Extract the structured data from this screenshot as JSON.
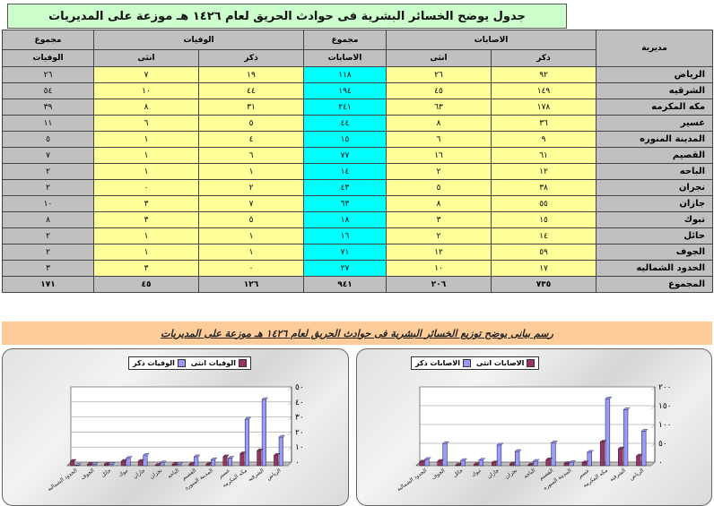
{
  "title": "جدول يوضح الخسائر البشرية فى حوادث الحريق لعام ١٤٢٦ هـ موزعة على المديريات",
  "subtitle": "رسم بيانى يوضح توزيع الخسائر البشرية فى حوادث الحريق لعام ١٤٢٦ هـ موزعة على المديريات",
  "headers": {
    "directorate": "مديرية",
    "injuries": "الاصابات",
    "injuries_total_top": "مجموع",
    "injuries_total_bottom": "الاصابات",
    "deaths": "الوفيات",
    "deaths_total_top": "مجموع",
    "deaths_total_bottom": "الوفيات",
    "male": "ذكر",
    "female": "انثى"
  },
  "rows": [
    {
      "name": "الرياض",
      "inj_m": "٩٢",
      "inj_f": "٢٦",
      "inj_t": "١١٨",
      "dth_m": "١٩",
      "dth_f": "٧",
      "dth_t": "٢٦"
    },
    {
      "name": "الشرقيه",
      "inj_m": "١٤٩",
      "inj_f": "٤٥",
      "inj_t": "١٩٤",
      "dth_m": "٤٤",
      "dth_f": "١٠",
      "dth_t": "٥٤"
    },
    {
      "name": "مكه المكرمه",
      "inj_m": "١٧٨",
      "inj_f": "٦٣",
      "inj_t": "٢٤١",
      "dth_m": "٣١",
      "dth_f": "٨",
      "dth_t": "٣٩"
    },
    {
      "name": "عسير",
      "inj_m": "٣٦",
      "inj_f": "٨",
      "inj_t": "٤٤",
      "dth_m": "٥",
      "dth_f": "٦",
      "dth_t": "١١"
    },
    {
      "name": "المدينة المنوره",
      "inj_m": "٩",
      "inj_f": "٦",
      "inj_t": "١٥",
      "dth_m": "٤",
      "dth_f": "١",
      "dth_t": "٥"
    },
    {
      "name": "القصيم",
      "inj_m": "٦١",
      "inj_f": "١٦",
      "inj_t": "٧٧",
      "dth_m": "٦",
      "dth_f": "١",
      "dth_t": "٧"
    },
    {
      "name": "الباحه",
      "inj_m": "١٢",
      "inj_f": "٢",
      "inj_t": "١٤",
      "dth_m": "١",
      "dth_f": "١",
      "dth_t": "٢"
    },
    {
      "name": "نجران",
      "inj_m": "٣٨",
      "inj_f": "٥",
      "inj_t": "٤٣",
      "dth_m": "٢",
      "dth_f": "٠",
      "dth_t": "٢"
    },
    {
      "name": "جازان",
      "inj_m": "٥٥",
      "inj_f": "٨",
      "inj_t": "٦٣",
      "dth_m": "٧",
      "dth_f": "٣",
      "dth_t": "١٠"
    },
    {
      "name": "تبوك",
      "inj_m": "١٥",
      "inj_f": "٣",
      "inj_t": "١٨",
      "dth_m": "٥",
      "dth_f": "٣",
      "dth_t": "٨"
    },
    {
      "name": "حائل",
      "inj_m": "١٤",
      "inj_f": "٢",
      "inj_t": "١٦",
      "dth_m": "١",
      "dth_f": "١",
      "dth_t": "٢"
    },
    {
      "name": "الجوف",
      "inj_m": "٥٩",
      "inj_f": "١٢",
      "inj_t": "٧١",
      "dth_m": "١",
      "dth_f": "١",
      "dth_t": "٢"
    },
    {
      "name": "الحدود الشماليه",
      "inj_m": "١٧",
      "inj_f": "١٠",
      "inj_t": "٢٧",
      "dth_m": "٠",
      "dth_f": "٣",
      "dth_t": "٣"
    }
  ],
  "totals": {
    "name": "المجموع",
    "inj_m": "٧٣٥",
    "inj_f": "٢٠٦",
    "inj_t": "٩٤١",
    "dth_m": "١٢٦",
    "dth_f": "٤٥",
    "dth_t": "١٧١"
  },
  "colors": {
    "male": "#9999ff",
    "female": "#993366",
    "title_bg": "#ccffcc",
    "cell_yellow": "#ffff99",
    "cell_cyan": "#00ffff",
    "subtitle_bg": "#ffcc99"
  },
  "chart_data": [
    {
      "type": "bar",
      "categories": [
        "الحدود الشماليه",
        "الجوف",
        "حائل",
        "تبوك",
        "جازان",
        "نجران",
        "الباحه",
        "القصيم",
        "المدينة المنوره",
        "عسير",
        "مكه المكرمه",
        "الشرقيه",
        "الرياض"
      ],
      "series": [
        {
          "name": "الوفيات ذكر",
          "color": "#9999ff",
          "values": [
            0,
            1,
            1,
            5,
            7,
            2,
            1,
            6,
            4,
            5,
            31,
            44,
            19
          ]
        },
        {
          "name": "الوفيات انثى",
          "color": "#993366",
          "values": [
            3,
            1,
            1,
            3,
            3,
            0,
            1,
            1,
            1,
            6,
            8,
            10,
            7
          ]
        }
      ],
      "ylim": [
        0,
        50
      ],
      "yticks": [
        "٠",
        "١٠",
        "٢٠",
        "٣٠",
        "٤٠",
        "٥٠"
      ],
      "legend": "top"
    },
    {
      "type": "bar",
      "categories": [
        "الحدود الشماليه",
        "الجوف",
        "حائل",
        "تبوك",
        "جازان",
        "نجران",
        "الباحه",
        "القصيم",
        "المدينة المنوره",
        "عسير",
        "مكه المكرمه",
        "الشرقيه",
        "الرياض"
      ],
      "series": [
        {
          "name": "الاصابات ذكر",
          "color": "#9999ff",
          "values": [
            17,
            59,
            14,
            15,
            55,
            38,
            12,
            61,
            9,
            36,
            178,
            149,
            92
          ]
        },
        {
          "name": "الاصابات انثى",
          "color": "#993366",
          "values": [
            10,
            12,
            2,
            3,
            8,
            5,
            2,
            16,
            6,
            8,
            63,
            45,
            26
          ]
        }
      ],
      "ylim": [
        0,
        200
      ],
      "yticks": [
        "٠",
        "٥٠",
        "١٠٠",
        "١٥٠",
        "٢٠٠"
      ],
      "legend": "top"
    }
  ]
}
